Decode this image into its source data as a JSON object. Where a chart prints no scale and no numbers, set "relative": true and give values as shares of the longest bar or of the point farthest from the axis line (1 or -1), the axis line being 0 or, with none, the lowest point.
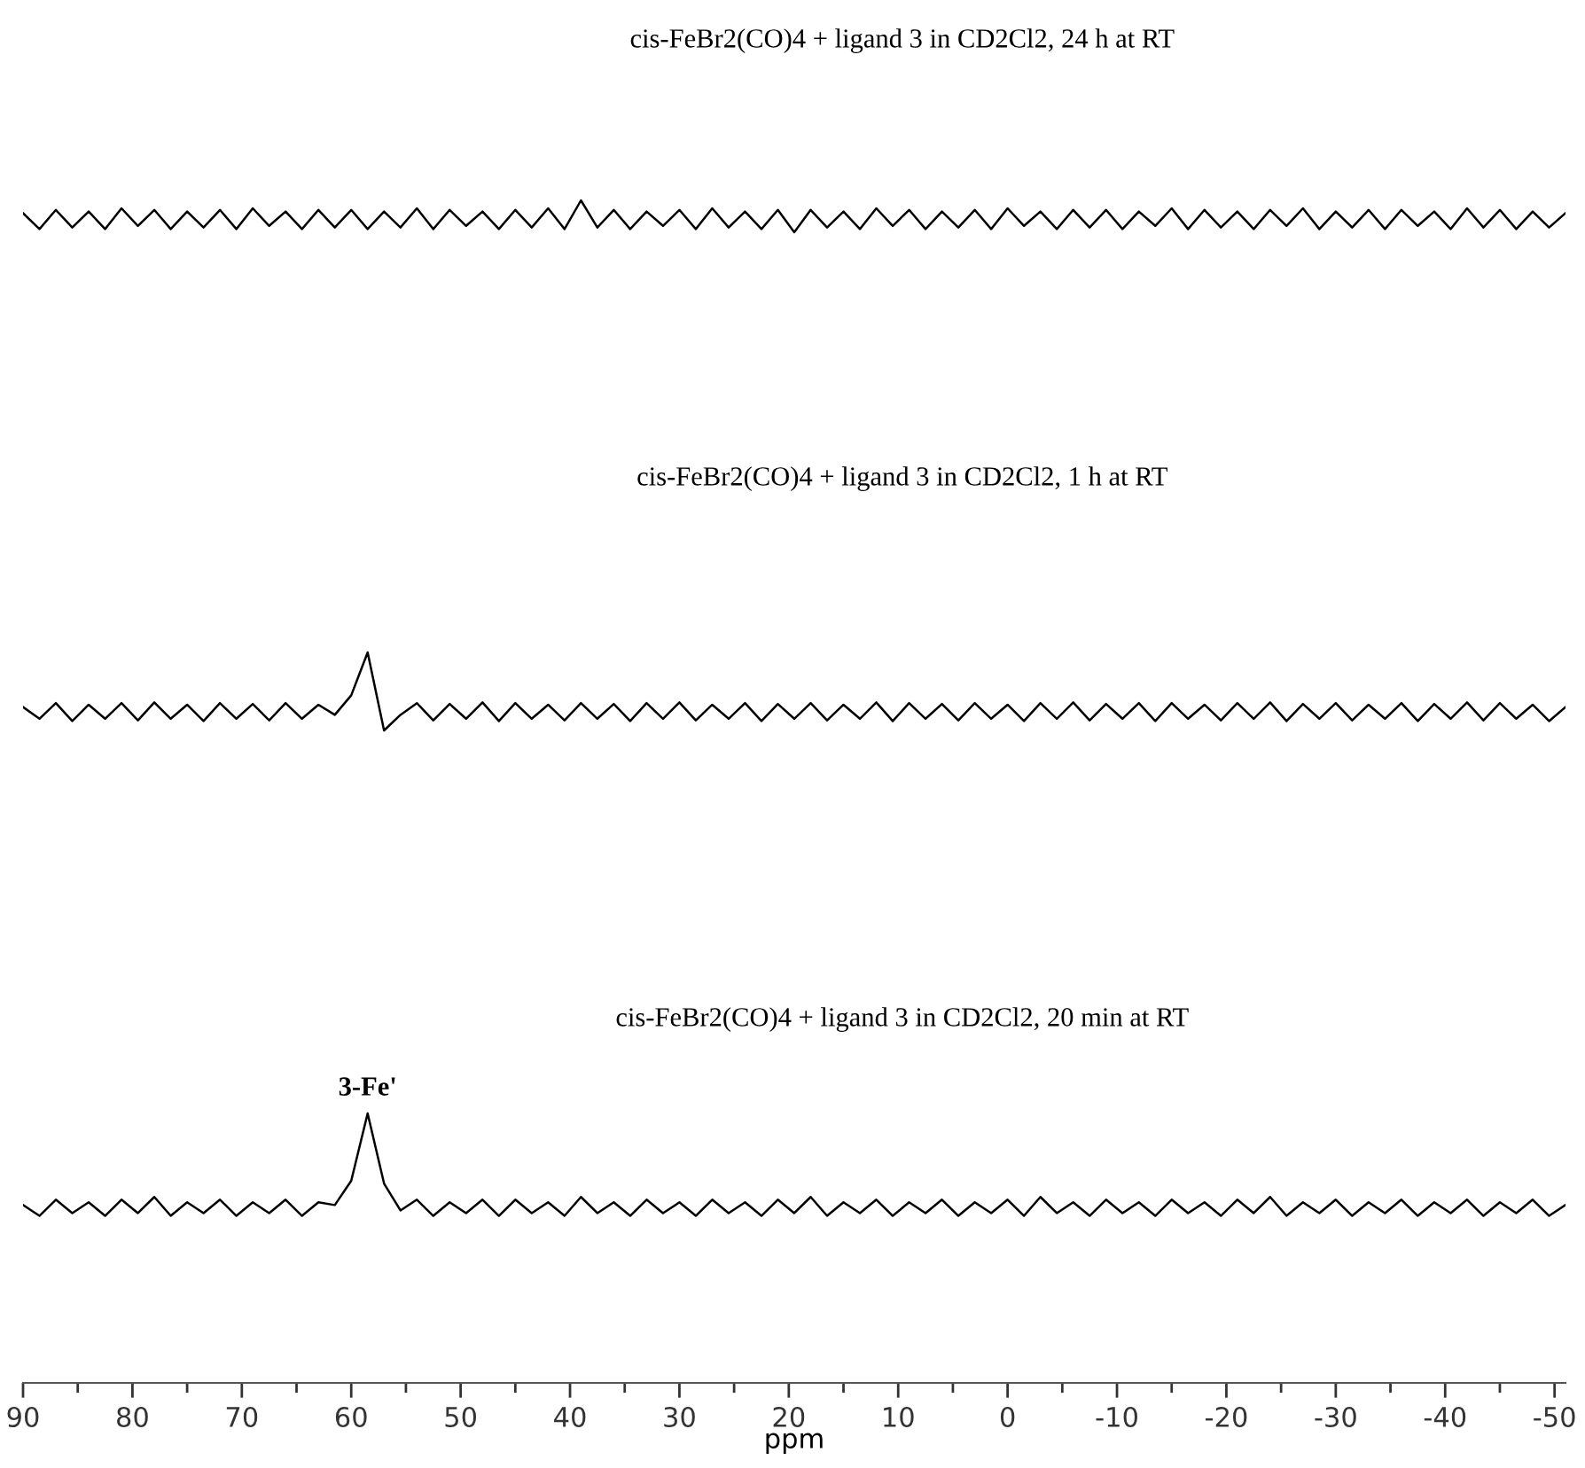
{
  "chart_data": [
    {
      "type": "line",
      "title": "cis-FeBr2(CO)4 + ligand 3 in CD2Cl2, 24 h at RT",
      "relative": true,
      "tick_labels": false,
      "categories": [
        null,
        null,
        null,
        null,
        null,
        null,
        null,
        null,
        null,
        null,
        null,
        null,
        null,
        null,
        null,
        null,
        null,
        null,
        null,
        null,
        null,
        null,
        null,
        null,
        null,
        null,
        null,
        null,
        null,
        null,
        null,
        null,
        null,
        null,
        null,
        null,
        null,
        null,
        null,
        null,
        null,
        null,
        null,
        null,
        null,
        null,
        null,
        null,
        null,
        null,
        null,
        null,
        null,
        null,
        null,
        null,
        null,
        null,
        null,
        null,
        null,
        null,
        null,
        null,
        null,
        null,
        null,
        null,
        null,
        null,
        null,
        null,
        null,
        null,
        null,
        null,
        null,
        null,
        null,
        null,
        null,
        null,
        null,
        null,
        null,
        null,
        null,
        null,
        null,
        null,
        null,
        null,
        null,
        null,
        null
      ],
      "series": [
        {
          "color": "#000000",
          "values": [
            0.6,
            0.1,
            0.7,
            0.15,
            0.65,
            0.1,
            0.75,
            0.2,
            0.7,
            0.1,
            0.65,
            0.15,
            0.7,
            0.1,
            0.75,
            0.2,
            0.65,
            0.1,
            0.7,
            0.15,
            0.7,
            0.1,
            0.65,
            0.15,
            0.75,
            0.1,
            0.7,
            0.2,
            0.65,
            0.1,
            0.7,
            0.15,
            0.75,
            0.1,
            1,
            0.15,
            0.7,
            0.1,
            0.65,
            0.2,
            0.7,
            0.1,
            0.75,
            0.15,
            0.65,
            0.1,
            0.7,
            0,
            0.7,
            0.15,
            0.65,
            0.1,
            0.75,
            0.2,
            0.7,
            0.1,
            0.65,
            0.15,
            0.7,
            0.1,
            0.75,
            0.2,
            0.65,
            0.1,
            0.7,
            0.15,
            0.7,
            0.1,
            0.65,
            0.2,
            0.75,
            0.1,
            0.7,
            0.15,
            0.65,
            0.1,
            0.7,
            0.2,
            0.75,
            0.1,
            0.65,
            0.15,
            0.7,
            0.1,
            0.7,
            0.2,
            0.65,
            0.1,
            0.75,
            0.15,
            0.7,
            0.1,
            0.65,
            0.15,
            0.6
          ]
        }
      ]
    },
    {
      "type": "line",
      "title": "cis-FeBr2(CO)4 + ligand 3 in CD2Cl2, 1 h at RT",
      "relative": true,
      "tick_labels": false,
      "categories": [
        null,
        null,
        null,
        null,
        null,
        null,
        null,
        null,
        null,
        null,
        null,
        null,
        null,
        null,
        null,
        null,
        null,
        null,
        null,
        null,
        null,
        null,
        null,
        null,
        null,
        null,
        null,
        null,
        null,
        null,
        null,
        null,
        null,
        null,
        null,
        null,
        null,
        null,
        null,
        null,
        null,
        null,
        null,
        null,
        null,
        null,
        null,
        null,
        null,
        null,
        null,
        null,
        null,
        null,
        null,
        null,
        null,
        null,
        null,
        null,
        null,
        null,
        null,
        null,
        null,
        null,
        null,
        null,
        null,
        null,
        null,
        null,
        null,
        null,
        null,
        null,
        null,
        null,
        null,
        null,
        null,
        null,
        null,
        null,
        null,
        null,
        null,
        null,
        null,
        null,
        null,
        null,
        null,
        null,
        null
      ],
      "series": [
        {
          "color": "#000000",
          "values": [
            0.3,
            0.15,
            0.35,
            0.12,
            0.33,
            0.15,
            0.35,
            0.13,
            0.36,
            0.15,
            0.33,
            0.12,
            0.35,
            0.15,
            0.34,
            0.13,
            0.35,
            0.15,
            0.33,
            0.2,
            0.45,
            1,
            0,
            0.2,
            0.35,
            0.13,
            0.34,
            0.15,
            0.36,
            0.12,
            0.35,
            0.15,
            0.33,
            0.13,
            0.35,
            0.15,
            0.34,
            0.12,
            0.35,
            0.15,
            0.36,
            0.13,
            0.33,
            0.15,
            0.35,
            0.12,
            0.34,
            0.15,
            0.35,
            0.13,
            0.33,
            0.15,
            0.36,
            0.12,
            0.35,
            0.15,
            0.34,
            0.13,
            0.35,
            0.15,
            0.33,
            0.12,
            0.35,
            0.15,
            0.36,
            0.13,
            0.34,
            0.15,
            0.35,
            0.12,
            0.35,
            0.15,
            0.33,
            0.13,
            0.35,
            0.15,
            0.36,
            0.12,
            0.34,
            0.15,
            0.35,
            0.13,
            0.33,
            0.15,
            0.35,
            0.12,
            0.34,
            0.15,
            0.36,
            0.13,
            0.35,
            0.15,
            0.33,
            0.12,
            0.3
          ]
        }
      ]
    },
    {
      "type": "line",
      "title": "cis-FeBr2(CO)4 + ligand 3 in CD2Cl2, 20 min at RT",
      "relative": true,
      "xlabel": "ppm",
      "xlim": [
        90,
        -51
      ],
      "tick_labels": "x",
      "xticks": [
        90,
        {
          "value": 85,
          "label": null
        },
        80,
        {
          "value": 75,
          "label": null
        },
        70,
        {
          "value": 65,
          "label": null
        },
        60,
        {
          "value": 55,
          "label": null
        },
        50,
        {
          "value": 45,
          "label": null
        },
        40,
        {
          "value": 35,
          "label": null
        },
        30,
        {
          "value": 25,
          "label": null
        },
        20,
        {
          "value": 15,
          "label": null
        },
        10,
        {
          "value": 5,
          "label": null
        },
        0,
        {
          "value": -5,
          "label": null
        },
        -10,
        {
          "value": -15,
          "label": null
        },
        -20,
        {
          "value": -25,
          "label": null
        },
        -30,
        {
          "value": -35,
          "label": null
        },
        -40,
        {
          "value": -45,
          "label": null
        },
        -50
      ],
      "annotations": [
        {
          "text": "3-Fe'",
          "x": 58.5,
          "y": 1
        }
      ],
      "x": [
        90,
        88.5,
        87,
        85.5,
        84,
        82.5,
        81,
        79.5,
        78,
        76.5,
        75,
        73.5,
        72,
        70.5,
        69,
        67.5,
        66,
        64.5,
        63,
        61.5,
        60,
        58.5,
        57,
        55.5,
        54,
        52.5,
        51,
        49.5,
        48,
        46.5,
        45,
        43.5,
        42,
        40.5,
        39,
        37.5,
        36,
        34.5,
        33,
        31.5,
        30,
        28.5,
        27,
        25.5,
        24,
        22.5,
        21,
        19.5,
        18,
        16.5,
        15,
        13.5,
        12,
        10.5,
        9,
        7.5,
        6,
        4.5,
        3,
        1.5,
        0,
        -1.5,
        -3,
        -4.5,
        -6,
        -7.5,
        -9,
        -10.5,
        -12,
        -13.5,
        -15,
        -16.5,
        -18,
        -19.5,
        -21,
        -22.5,
        -24,
        -25.5,
        -27,
        -28.5,
        -30,
        -31.5,
        -33,
        -34.5,
        -36,
        -37.5,
        -39,
        -40.5,
        -42,
        -43.5,
        -45,
        -46.5,
        -48,
        -49.5,
        -51
      ],
      "series": [
        {
          "color": "#000000",
          "values": [
            0.66,
            0.62,
            0.68,
            0.63,
            0.67,
            0.62,
            0.68,
            0.63,
            0.69,
            0.62,
            0.67,
            0.63,
            0.68,
            0.62,
            0.67,
            0.63,
            0.68,
            0.62,
            0.67,
            0.66,
            0.75,
            1,
            0.74,
            0.64,
            0.68,
            0.62,
            0.67,
            0.63,
            0.68,
            0.62,
            0.68,
            0.63,
            0.67,
            0.62,
            0.69,
            0.63,
            0.67,
            0.62,
            0.68,
            0.63,
            0.67,
            0.62,
            0.68,
            0.63,
            0.67,
            0.62,
            0.68,
            0.63,
            0.69,
            0.62,
            0.67,
            0.63,
            0.68,
            0.62,
            0.67,
            0.63,
            0.68,
            0.62,
            0.67,
            0.63,
            0.68,
            0.62,
            0.69,
            0.63,
            0.67,
            0.62,
            0.68,
            0.63,
            0.67,
            0.62,
            0.68,
            0.63,
            0.67,
            0.62,
            0.68,
            0.63,
            0.69,
            0.62,
            0.67,
            0.63,
            0.68,
            0.62,
            0.67,
            0.63,
            0.68,
            0.62,
            0.67,
            0.63,
            0.68,
            0.62,
            0.67,
            0.63,
            0.68,
            0.62,
            0.66
          ]
        }
      ]
    }
  ]
}
